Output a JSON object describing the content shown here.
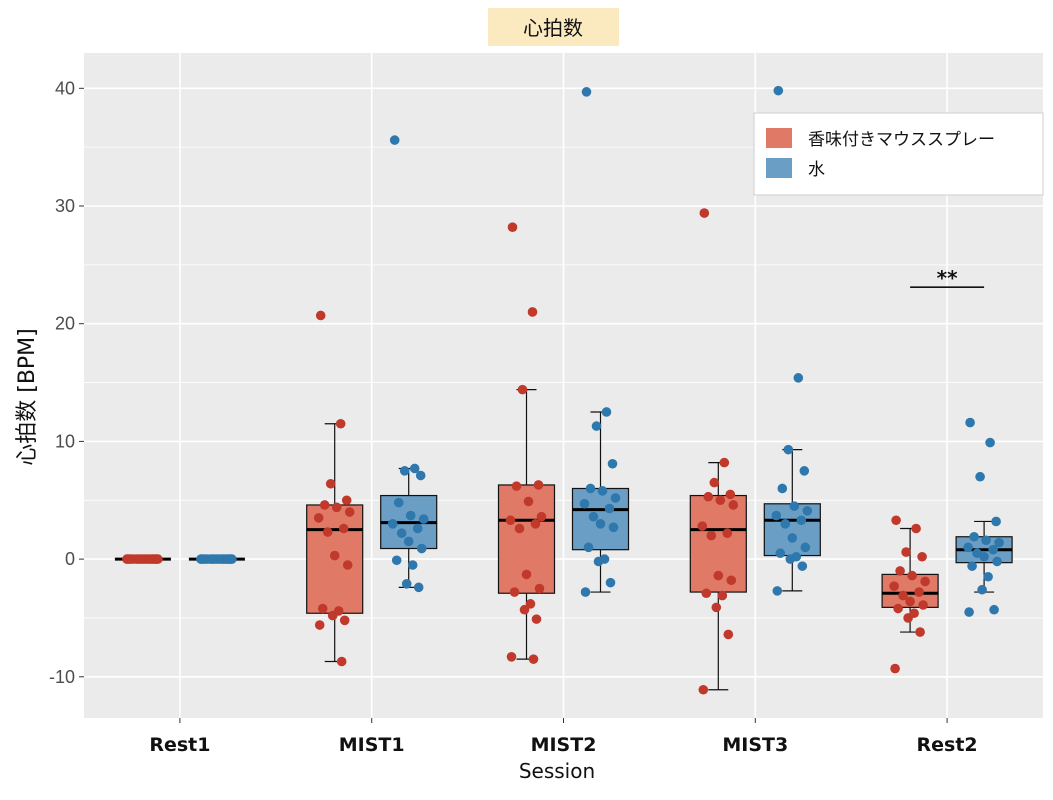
{
  "chart_data": {
    "type": "box",
    "title": "心拍数",
    "xlabel": "Session",
    "ylabel": "心拍数 [BPM]",
    "ylim": [
      -13.5,
      43
    ],
    "yticks": [
      -10,
      0,
      10,
      20,
      30,
      40
    ],
    "grid": true,
    "legend_position": "top-right",
    "categories": [
      "Rest1",
      "MIST1",
      "MIST2",
      "MIST3",
      "Rest2"
    ],
    "significance": [
      {
        "category": "Rest2",
        "label": "**",
        "y": 23.1
      }
    ],
    "series": [
      {
        "name": "香味付きマウススプレー",
        "fill": "#e07a66",
        "point_color": "#c0392b",
        "boxes": [
          {
            "min": 0,
            "q1": 0,
            "median": 0,
            "q3": 0,
            "max": 0
          },
          {
            "min": -8.7,
            "q1": -4.6,
            "median": 2.5,
            "q3": 4.6,
            "max": 11.5
          },
          {
            "min": -8.5,
            "q1": -2.9,
            "median": 3.3,
            "q3": 6.3,
            "max": 14.4
          },
          {
            "min": -11.1,
            "q1": -2.8,
            "median": 2.5,
            "q3": 5.4,
            "max": 8.2
          },
          {
            "min": -6.2,
            "q1": -4.1,
            "median": -2.9,
            "q3": -1.3,
            "max": 2.6
          }
        ],
        "points": [
          [
            0,
            0,
            0,
            0,
            0,
            0,
            0,
            0,
            0,
            0,
            0,
            0,
            0,
            0,
            0,
            0,
            0,
            0,
            0,
            0
          ],
          [
            20.7,
            11.5,
            6.4,
            5.0,
            4.6,
            4.4,
            4.0,
            3.5,
            2.6,
            2.3,
            0.3,
            -0.5,
            -4.2,
            -4.4,
            -4.8,
            -5.2,
            -5.6,
            -8.7
          ],
          [
            28.2,
            21.0,
            14.4,
            6.3,
            6.2,
            4.9,
            3.6,
            3.3,
            3.0,
            2.6,
            -1.3,
            -2.5,
            -2.8,
            -3.8,
            -4.3,
            -5.1,
            -8.3,
            -8.5
          ],
          [
            29.4,
            8.2,
            6.5,
            5.5,
            5.3,
            5.0,
            4.6,
            2.8,
            2.2,
            2.0,
            -1.4,
            -1.8,
            -2.9,
            -3.1,
            -4.1,
            -6.4,
            -11.1
          ],
          [
            3.3,
            2.6,
            0.6,
            0.2,
            -1.0,
            -1.4,
            -1.9,
            -2.3,
            -2.8,
            -3.1,
            -3.6,
            -3.9,
            -4.2,
            -4.6,
            -5.0,
            -6.2,
            -9.3
          ]
        ]
      },
      {
        "name": "水",
        "fill": "#6a9ec5",
        "point_color": "#2e78ad",
        "boxes": [
          {
            "min": 0,
            "q1": 0,
            "median": 0,
            "q3": 0,
            "max": 0
          },
          {
            "min": -2.4,
            "q1": 0.9,
            "median": 3.1,
            "q3": 5.4,
            "max": 7.7
          },
          {
            "min": -2.8,
            "q1": 0.8,
            "median": 4.2,
            "q3": 6.0,
            "max": 12.5
          },
          {
            "min": -2.7,
            "q1": 0.3,
            "median": 3.3,
            "q3": 4.7,
            "max": 9.3
          },
          {
            "min": -2.8,
            "q1": -0.3,
            "median": 0.8,
            "q3": 1.9,
            "max": 3.2
          }
        ],
        "points": [
          [
            0,
            0,
            0,
            0,
            0,
            0,
            0,
            0,
            0,
            0,
            0,
            0,
            0,
            0,
            0,
            0,
            0,
            0,
            0,
            0
          ],
          [
            35.6,
            7.7,
            7.5,
            7.1,
            4.8,
            3.7,
            3.4,
            3.0,
            2.6,
            2.2,
            1.5,
            0.9,
            -0.1,
            -0.5,
            -2.1,
            -2.4
          ],
          [
            39.7,
            12.5,
            11.3,
            8.1,
            6.0,
            5.8,
            5.2,
            4.7,
            4.3,
            3.6,
            3.0,
            2.7,
            1.0,
            0.0,
            -0.2,
            -2.0,
            -2.8
          ],
          [
            39.8,
            15.4,
            9.3,
            7.5,
            6.0,
            4.5,
            4.1,
            3.7,
            3.3,
            3.0,
            1.8,
            1.0,
            0.5,
            0.2,
            0.0,
            -0.6,
            -2.7
          ],
          [
            11.6,
            9.9,
            7.0,
            3.2,
            1.9,
            1.6,
            1.4,
            1.0,
            0.8,
            0.5,
            0.2,
            -0.2,
            -0.6,
            -1.5,
            -2.6,
            -4.3,
            -4.5
          ]
        ]
      }
    ]
  }
}
